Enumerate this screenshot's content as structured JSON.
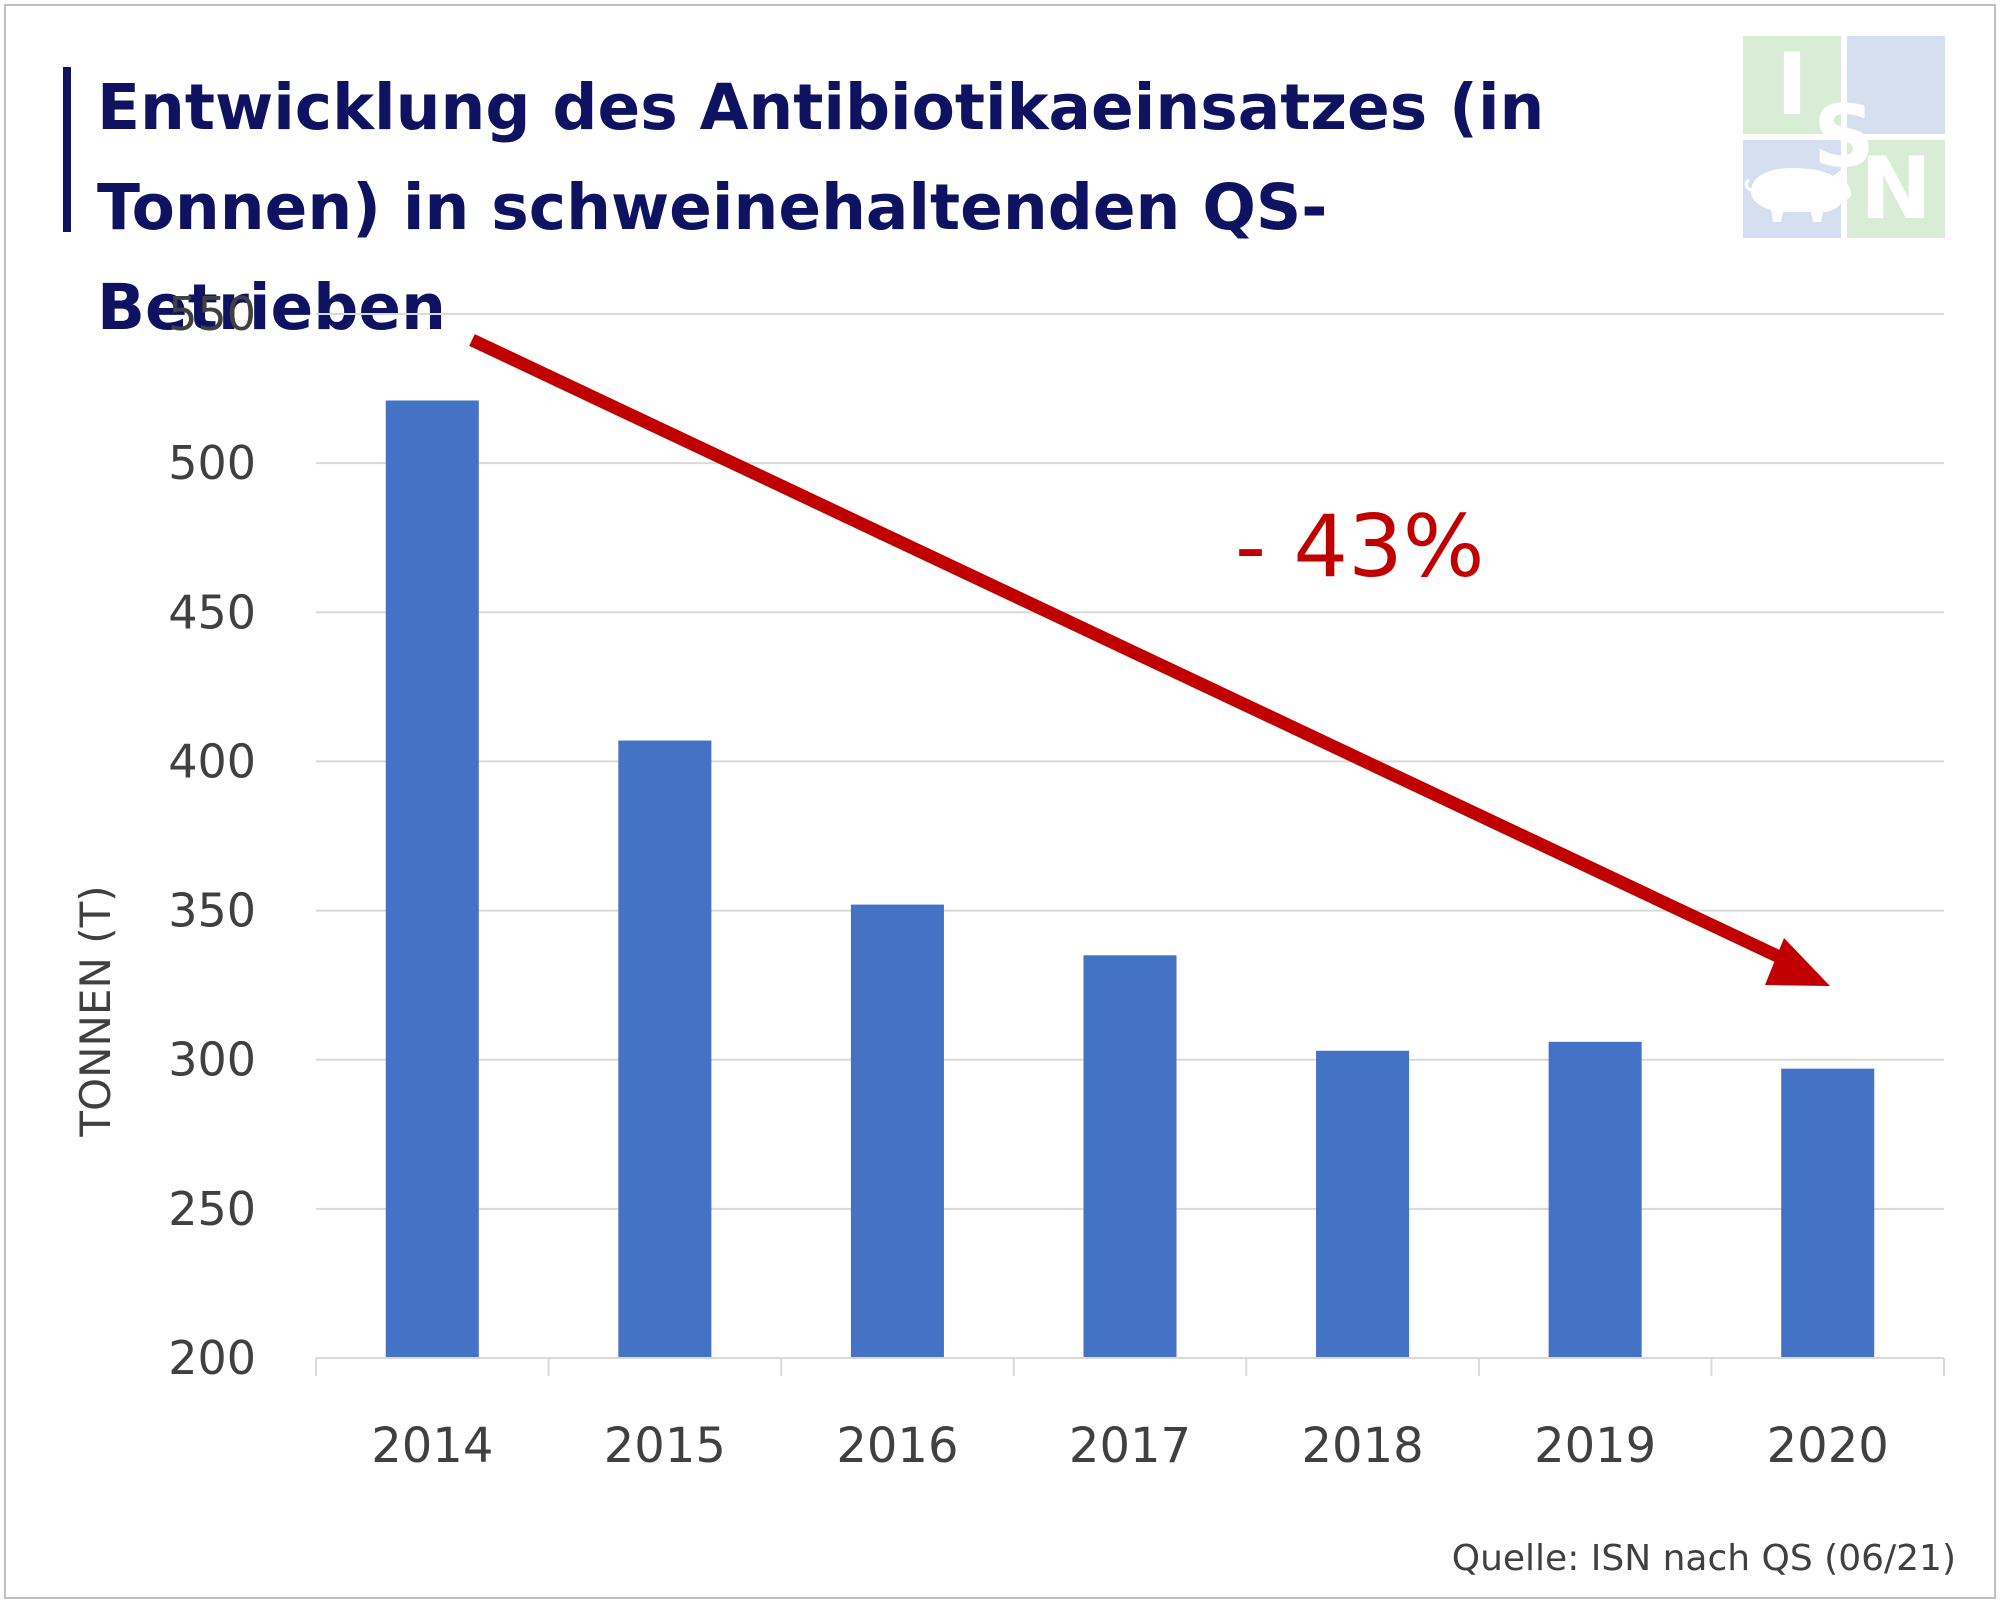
{
  "title_lines": [
    "Entwicklung des Antibiotikaeinsatzes (in",
    "Tonnen) in schweinehaltenden QS-Betrieben"
  ],
  "source": "Quelle: ISN nach QS (06/21)",
  "logo": {
    "letters": [
      "I",
      "S",
      "N"
    ],
    "colors": {
      "green": "#d8ecd6",
      "blue": "#d6dff0"
    }
  },
  "annotation": {
    "text": "- 43%",
    "color": "#c00000"
  },
  "colors": {
    "bar": "#4472c4",
    "grid": "#d9d9d9",
    "axis_text": "#404040",
    "title": "#0e1260",
    "arrow": "#c00000"
  },
  "chart_data": {
    "type": "bar",
    "title": "Entwicklung des Antibiotikaeinsatzes (in Tonnen) in schweinehaltenden QS-Betrieben",
    "xlabel": "",
    "ylabel": "TONNEN (T)",
    "categories": [
      "2014",
      "2015",
      "2016",
      "2017",
      "2018",
      "2019",
      "2020"
    ],
    "values": [
      521,
      407,
      352,
      335,
      303,
      306,
      297
    ],
    "ylim": [
      200,
      550
    ],
    "yticks": [
      200,
      250,
      300,
      350,
      400,
      450,
      500,
      550
    ],
    "grid": true,
    "legend": "none"
  }
}
